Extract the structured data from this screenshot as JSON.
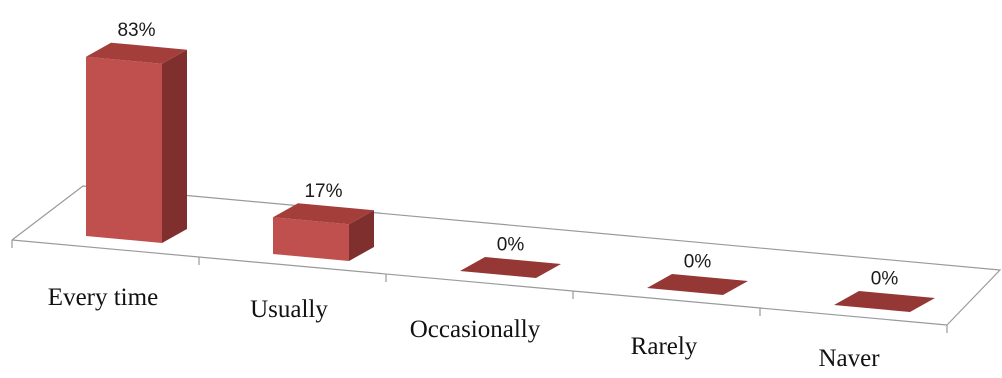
{
  "chart_data": {
    "type": "bar",
    "style": "3d-column",
    "categories": [
      "Every time",
      "Usually",
      "Occasionally",
      "Rarely",
      "Naver"
    ],
    "values": [
      83,
      17,
      0,
      0,
      0
    ],
    "data_labels": [
      "83%",
      "17%",
      "0%",
      "0%",
      "0%"
    ],
    "value_unit": "%",
    "ylim": [
      0,
      100
    ],
    "grid": false,
    "legend": "none",
    "colors": {
      "bar_front": "#c0504d",
      "bar_side": "#7f302e",
      "bar_top": "#a43e3b",
      "zero_bar": "#953735",
      "floor_line": "#9a9a9a"
    }
  }
}
